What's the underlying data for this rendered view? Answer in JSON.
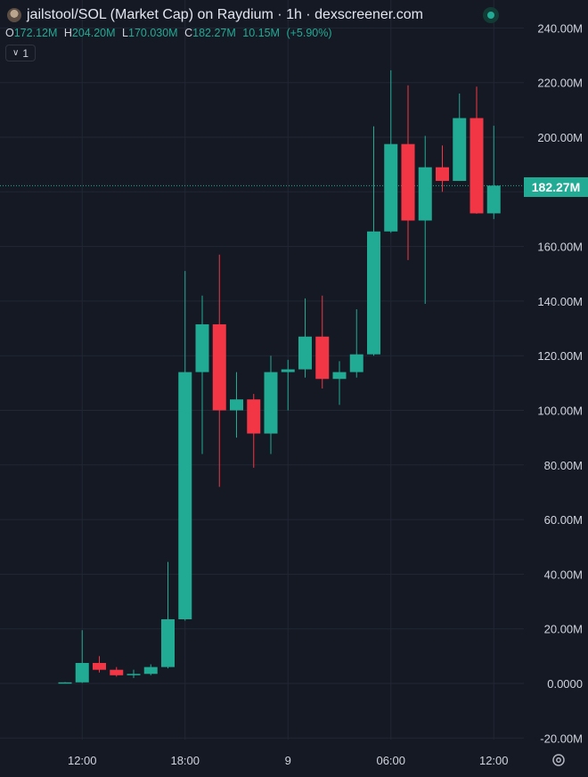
{
  "header": {
    "title": "jailstool/SOL (Market Cap) on Raydium · 1h · dexscreener.com"
  },
  "ohlc": {
    "open_label": "O",
    "open": "172.12M",
    "high_label": "H",
    "high": "204.20M",
    "low_label": "L",
    "low": "170.030M",
    "close_label": "C",
    "close": "182.27M",
    "volume": "10.15M",
    "change": "(+5.90%)"
  },
  "legend_toggle": {
    "icon": "chevron-down-icon",
    "count": "1"
  },
  "last_price": {
    "label": "182.27M",
    "value": 182.27
  },
  "colors": {
    "up": "#22ab94",
    "down": "#f23645",
    "background": "#151924",
    "grid": "#222734",
    "text": "#d1d4dc"
  },
  "chart_data": {
    "type": "candlestick",
    "title": "jailstool/SOL (Market Cap) on Raydium · 1h · dexscreener.com",
    "y_unit": "M",
    "ylim": [
      -20,
      240
    ],
    "yticks": [
      240,
      220,
      200,
      180,
      160,
      140,
      120,
      100,
      80,
      60,
      40,
      20,
      0,
      -20
    ],
    "ytick_labels": [
      "240.00M",
      "220.00M",
      "200.00M",
      "180.00M",
      "160.00M",
      "140.00M",
      "120.00M",
      "100.00M",
      "80.00M",
      "60.00M",
      "40.00M",
      "20.00M",
      "0.0000",
      "-20.00M"
    ],
    "xticks": [
      {
        "index": 1,
        "label": "12:00"
      },
      {
        "index": 7,
        "label": "18:00"
      },
      {
        "index": 13,
        "label": "9"
      },
      {
        "index": 19,
        "label": "06:00"
      },
      {
        "index": 25,
        "label": "12:00"
      }
    ],
    "candles": [
      {
        "o": 0.2,
        "h": 0.5,
        "l": 0.0,
        "c": 0.4
      },
      {
        "o": 0.4,
        "h": 19.5,
        "l": 0.2,
        "c": 7.5
      },
      {
        "o": 7.5,
        "h": 10.0,
        "l": 4.0,
        "c": 5.0
      },
      {
        "o": 5.0,
        "h": 6.0,
        "l": 2.5,
        "c": 3.0
      },
      {
        "o": 3.0,
        "h": 5.0,
        "l": 2.0,
        "c": 3.5
      },
      {
        "o": 3.5,
        "h": 7.0,
        "l": 3.0,
        "c": 6.0
      },
      {
        "o": 6.0,
        "h": 44.5,
        "l": 5.5,
        "c": 23.5
      },
      {
        "o": 23.5,
        "h": 151.0,
        "l": 23.0,
        "c": 114.0
      },
      {
        "o": 114.0,
        "h": 142.0,
        "l": 84.0,
        "c": 131.5
      },
      {
        "o": 131.5,
        "h": 157.0,
        "l": 72.0,
        "c": 100.0
      },
      {
        "o": 100.0,
        "h": 114.0,
        "l": 90.0,
        "c": 104.0
      },
      {
        "o": 104.0,
        "h": 106.0,
        "l": 79.0,
        "c": 91.5
      },
      {
        "o": 91.5,
        "h": 120.0,
        "l": 84.0,
        "c": 114.0
      },
      {
        "o": 114.0,
        "h": 118.5,
        "l": 100.0,
        "c": 115.0
      },
      {
        "o": 115.0,
        "h": 141.0,
        "l": 112.0,
        "c": 127.0
      },
      {
        "o": 127.0,
        "h": 142.0,
        "l": 108.0,
        "c": 111.5
      },
      {
        "o": 111.5,
        "h": 118.0,
        "l": 102.0,
        "c": 114.0
      },
      {
        "o": 114.0,
        "h": 137.0,
        "l": 112.0,
        "c": 120.5
      },
      {
        "o": 120.5,
        "h": 204.0,
        "l": 120.0,
        "c": 165.5
      },
      {
        "o": 165.5,
        "h": 224.5,
        "l": 165.0,
        "c": 197.5
      },
      {
        "o": 197.5,
        "h": 219.0,
        "l": 155.0,
        "c": 169.5
      },
      {
        "o": 169.5,
        "h": 200.5,
        "l": 139.0,
        "c": 189.0
      },
      {
        "o": 189.0,
        "h": 197.0,
        "l": 180.0,
        "c": 184.0
      },
      {
        "o": 184.0,
        "h": 216.0,
        "l": 184.0,
        "c": 207.0
      },
      {
        "o": 207.0,
        "h": 218.5,
        "l": 172.0,
        "c": 172.12
      },
      {
        "o": 172.12,
        "h": 204.2,
        "l": 170.03,
        "c": 182.27
      }
    ]
  }
}
